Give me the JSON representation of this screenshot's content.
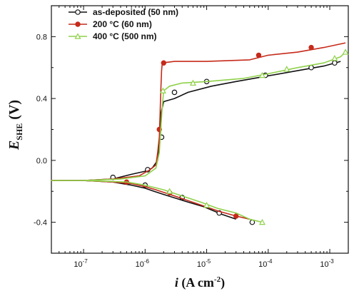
{
  "chart_data": {
    "type": "line",
    "xscale": "log",
    "xlim": [
      3e-08,
      0.002
    ],
    "ylim": [
      -0.6,
      1.0
    ],
    "ylabel": {
      "main": "E",
      "sub": "SHE",
      "unit": " (V)"
    },
    "xlabel": {
      "main": "i",
      "unit": " (A cm",
      "sup": "-2",
      "close": ")"
    },
    "x_major_ticks": [
      1e-07,
      1e-06,
      1e-05,
      0.0001,
      0.001
    ],
    "x_tick_labels": [
      {
        "base": "10",
        "exp": "-7"
      },
      {
        "base": "10",
        "exp": "-6"
      },
      {
        "base": "10",
        "exp": "-5"
      },
      {
        "base": "10",
        "exp": "-4"
      },
      {
        "base": "10",
        "exp": "-3"
      }
    ],
    "y_major_ticks": [
      -0.4,
      0.0,
      0.4,
      0.8
    ],
    "y_tick_labels": [
      "-0.4",
      "0.0",
      "0.4",
      "0.8"
    ],
    "legend_position": "top-left",
    "series": [
      {
        "name": "as-deposited (50 nm)",
        "color": "#111111",
        "marker": "open-circle",
        "points": [
          [
            3e-05,
            -0.38
          ],
          [
            1.8e-05,
            -0.35
          ],
          [
            9e-06,
            -0.3
          ],
          [
            5e-06,
            -0.27
          ],
          [
            2e-06,
            -0.22
          ],
          [
            1.4e-06,
            -0.2
          ],
          [
            1e-06,
            -0.18
          ],
          [
            6e-07,
            -0.16
          ],
          [
            3e-07,
            -0.14
          ],
          [
            1e-07,
            -0.13
          ],
          [
            3e-08,
            -0.13
          ],
          [
            1e-07,
            -0.13
          ],
          [
            3e-07,
            -0.12
          ],
          [
            6e-07,
            -0.09
          ],
          [
            1e-06,
            -0.07
          ],
          [
            1.3e-06,
            -0.05
          ],
          [
            1.6e-06,
            0.0
          ],
          [
            1.7e-06,
            0.1
          ],
          [
            1.8e-06,
            0.2
          ],
          [
            1.8e-06,
            0.3
          ],
          [
            2e-06,
            0.38
          ],
          [
            3e-06,
            0.4
          ],
          [
            5e-06,
            0.44
          ],
          [
            1.2e-05,
            0.48
          ],
          [
            3e-05,
            0.51
          ],
          [
            8e-05,
            0.54
          ],
          [
            0.0003,
            0.58
          ],
          [
            0.0008,
            0.61
          ],
          [
            0.0015,
            0.64
          ]
        ],
        "markers": [
          [
            3e-07,
            -0.11
          ],
          [
            1.1e-06,
            -0.06
          ],
          [
            1.85e-06,
            0.15
          ],
          [
            3e-06,
            0.44
          ],
          [
            1e-05,
            0.51
          ],
          [
            9e-05,
            0.55
          ],
          [
            0.0005,
            0.6
          ],
          [
            0.0012,
            0.63
          ],
          [
            1e-06,
            -0.16
          ],
          [
            4e-06,
            -0.24
          ],
          [
            1.6e-05,
            -0.34
          ],
          [
            5.5e-05,
            -0.4
          ]
        ]
      },
      {
        "name": "200 °C (60 nm)",
        "color": "#c62a1a",
        "marker": "filled-circle",
        "points": [
          [
            5e-05,
            -0.38
          ],
          [
            3e-05,
            -0.36
          ],
          [
            1.6e-05,
            -0.33
          ],
          [
            7e-06,
            -0.28
          ],
          [
            3e-06,
            -0.23
          ],
          [
            1.5e-06,
            -0.19
          ],
          [
            1e-06,
            -0.17
          ],
          [
            6e-07,
            -0.15
          ],
          [
            3e-07,
            -0.14
          ],
          [
            1e-07,
            -0.13
          ],
          [
            3e-08,
            -0.13
          ],
          [
            1e-07,
            -0.13
          ],
          [
            3e-07,
            -0.12
          ],
          [
            8e-07,
            -0.1
          ],
          [
            1.2e-06,
            -0.06
          ],
          [
            1.5e-06,
            -0.03
          ],
          [
            1.6e-06,
            0.05
          ],
          [
            1.7e-06,
            0.15
          ],
          [
            1.75e-06,
            0.3
          ],
          [
            1.8e-06,
            0.45
          ],
          [
            1.85e-06,
            0.58
          ],
          [
            1.9e-06,
            0.63
          ],
          [
            3e-06,
            0.64
          ],
          [
            1e-05,
            0.64
          ],
          [
            5e-05,
            0.65
          ],
          [
            0.0001,
            0.68
          ],
          [
            0.0003,
            0.7
          ],
          [
            0.0008,
            0.73
          ],
          [
            0.0018,
            0.76
          ]
        ],
        "markers": [
          [
            5e-07,
            -0.14
          ],
          [
            1.7e-06,
            0.2
          ],
          [
            2e-06,
            0.63
          ],
          [
            7e-05,
            0.68
          ],
          [
            0.0005,
            0.73
          ],
          [
            2.5e-06,
            -0.21
          ],
          [
            3e-05,
            -0.36
          ]
        ]
      },
      {
        "name": "400 °C (500 nm)",
        "color": "#8fd14a",
        "marker": "open-triangle",
        "points": [
          [
            8e-05,
            -0.4
          ],
          [
            5e-05,
            -0.38
          ],
          [
            3e-05,
            -0.34
          ],
          [
            1.5e-05,
            -0.31
          ],
          [
            8e-06,
            -0.27
          ],
          [
            4e-06,
            -0.23
          ],
          [
            2e-06,
            -0.19
          ],
          [
            1e-06,
            -0.16
          ],
          [
            5e-07,
            -0.14
          ],
          [
            1e-07,
            -0.13
          ],
          [
            3e-08,
            -0.13
          ],
          [
            1e-07,
            -0.13
          ],
          [
            4e-07,
            -0.12
          ],
          [
            1e-06,
            -0.1
          ],
          [
            1.5e-06,
            -0.05
          ],
          [
            1.7e-06,
            0.05
          ],
          [
            1.8e-06,
            0.2
          ],
          [
            1.9e-06,
            0.35
          ],
          [
            2e-06,
            0.45
          ],
          [
            2.5e-06,
            0.48
          ],
          [
            4e-06,
            0.5
          ],
          [
            1e-05,
            0.51
          ],
          [
            4e-05,
            0.53
          ],
          [
            0.0001,
            0.56
          ],
          [
            0.0003,
            0.6
          ],
          [
            0.0008,
            0.63
          ],
          [
            0.0015,
            0.67
          ],
          [
            0.0018,
            0.7
          ]
        ],
        "markers": [
          [
            1.95e-06,
            0.45
          ],
          [
            6e-06,
            0.5
          ],
          [
            8e-05,
            0.55
          ],
          [
            0.0002,
            0.59
          ],
          [
            0.0012,
            0.66
          ],
          [
            0.0018,
            0.7
          ],
          [
            2.5e-06,
            -0.2
          ],
          [
            1e-05,
            -0.29
          ],
          [
            8e-05,
            -0.4
          ]
        ]
      }
    ]
  }
}
